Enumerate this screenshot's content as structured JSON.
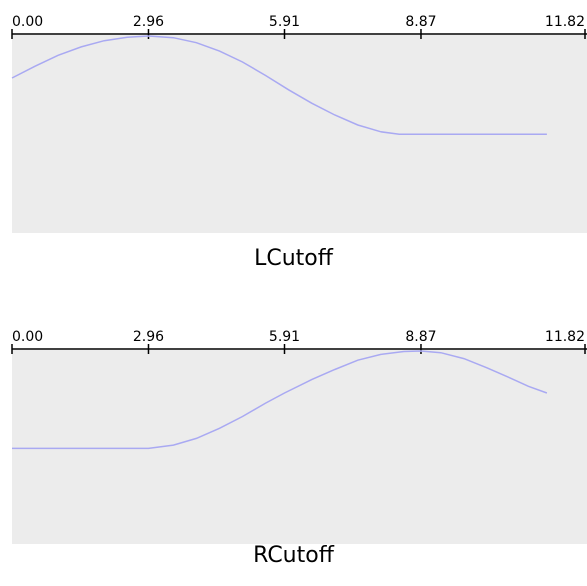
{
  "chart_data": [
    {
      "type": "line",
      "title": "LCutoff",
      "xlim": [
        0.0,
        11.82
      ],
      "x_ticks": [
        "0.00",
        "2.96",
        "5.91",
        "8.87",
        "11.82"
      ],
      "ylim": [
        0,
        1
      ],
      "grid": false,
      "series": [
        {
          "x": [
            0.0,
            0.5,
            1.0,
            1.5,
            2.0,
            2.5,
            2.96,
            3.5,
            4.0,
            4.5,
            5.0,
            5.5,
            6.0,
            6.5,
            7.0,
            7.5,
            8.0,
            8.4,
            8.87,
            9.5,
            10.0,
            10.5,
            11.0,
            11.6
          ],
          "y": [
            0.75,
            0.82,
            0.885,
            0.935,
            0.972,
            0.993,
            1.0,
            0.99,
            0.96,
            0.91,
            0.845,
            0.765,
            0.68,
            0.6,
            0.53,
            0.47,
            0.43,
            0.415,
            0.415,
            0.415,
            0.415,
            0.415,
            0.415,
            0.415
          ]
        }
      ]
    },
    {
      "type": "line",
      "title": "RCutoff",
      "xlim": [
        0.0,
        11.82
      ],
      "x_ticks": [
        "0.00",
        "2.96",
        "5.91",
        "8.87",
        "11.82"
      ],
      "ylim": [
        0,
        1
      ],
      "grid": false,
      "series": [
        {
          "x": [
            0.0,
            1.0,
            2.0,
            2.96,
            3.5,
            4.0,
            4.5,
            5.0,
            5.5,
            5.91,
            6.5,
            7.0,
            7.5,
            8.0,
            8.5,
            8.87,
            9.3,
            9.8,
            10.3,
            10.8,
            11.2,
            11.6
          ],
          "y": [
            0.42,
            0.42,
            0.42,
            0.42,
            0.44,
            0.48,
            0.54,
            0.61,
            0.69,
            0.75,
            0.83,
            0.89,
            0.945,
            0.98,
            0.997,
            1.0,
            0.99,
            0.955,
            0.9,
            0.84,
            0.79,
            0.75
          ]
        }
      ]
    }
  ],
  "colors": {
    "plot_background": "#ececec",
    "curve": "#a9a9f2",
    "axis": "#000000"
  }
}
